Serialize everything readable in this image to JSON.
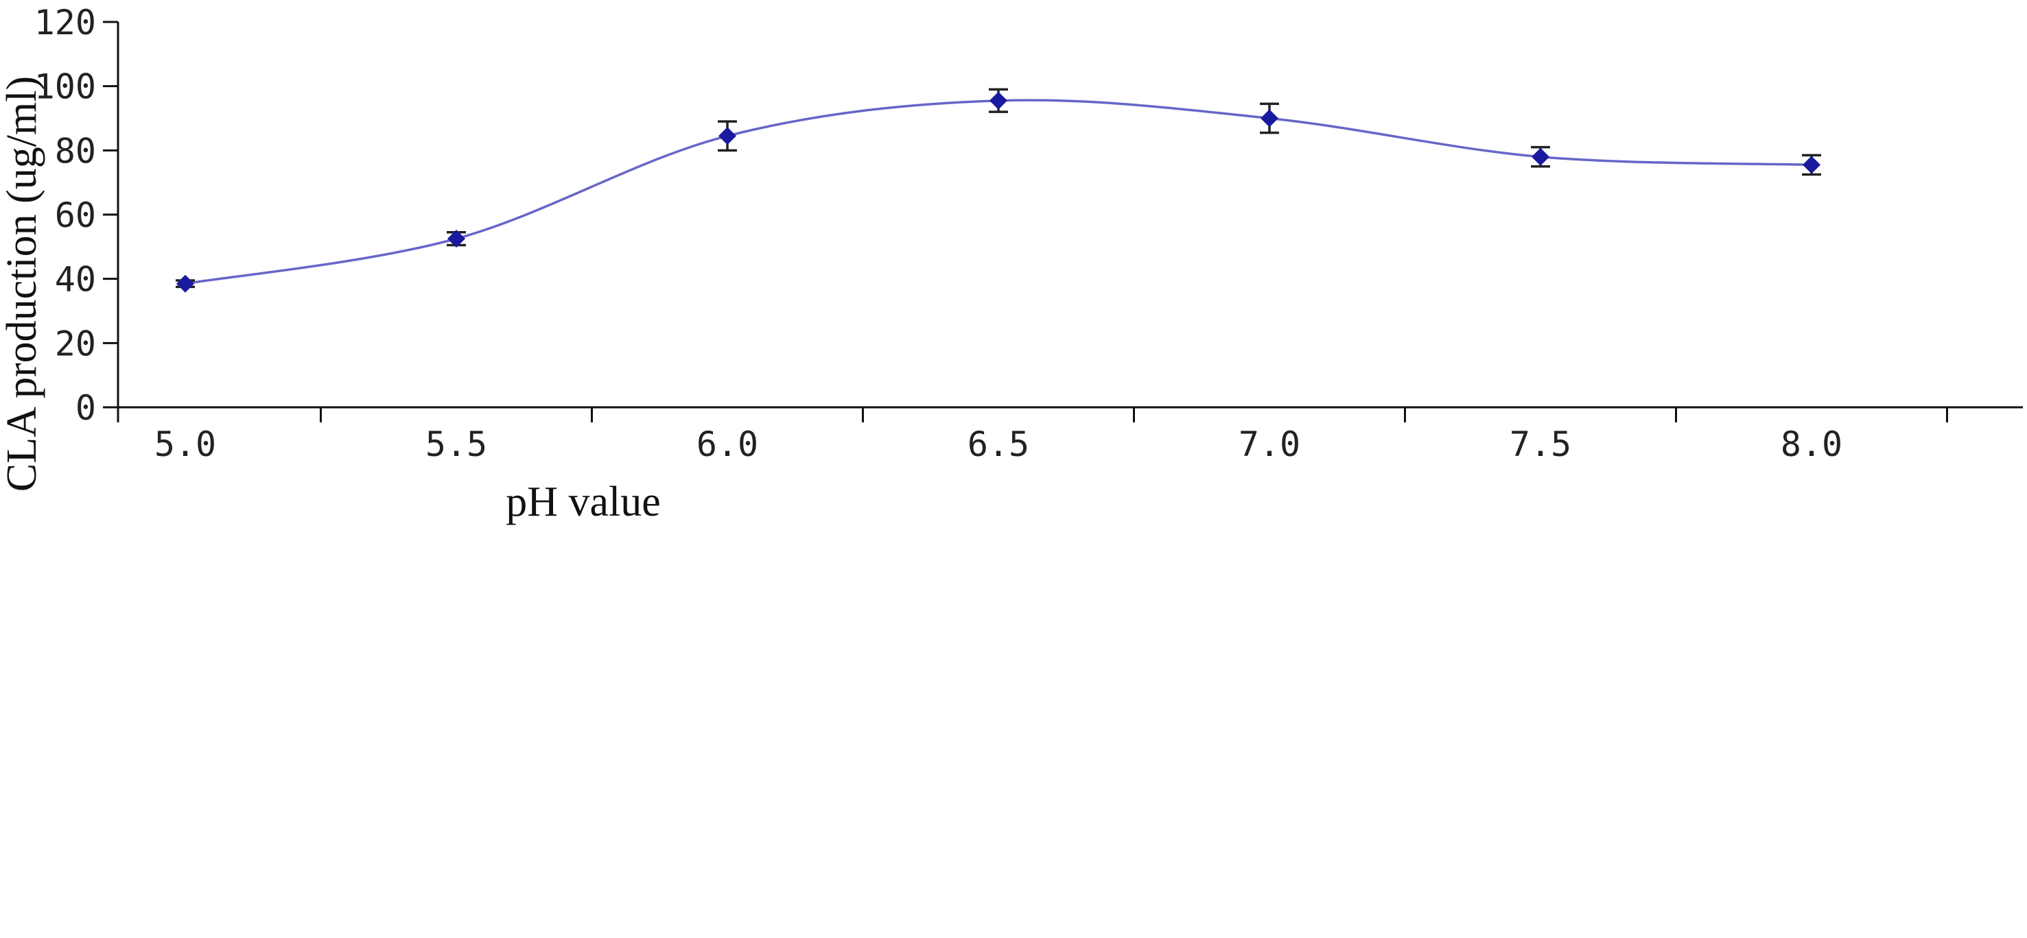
{
  "chart_data": {
    "type": "line",
    "title": "",
    "xlabel": "pH value",
    "ylabel": "CLA  production (ug/ml)",
    "categories": [
      "5.0",
      "5.5",
      "6.0",
      "6.5",
      "7.0",
      "7.5",
      "8.0"
    ],
    "y_ticks": [
      "0",
      "20",
      "40",
      "60",
      "80",
      "100",
      "120"
    ],
    "ylim": [
      0,
      120
    ],
    "grid": false,
    "legend": "none",
    "series": [
      {
        "values": [
          38.5,
          52.5,
          84.5,
          95.5,
          90,
          78,
          75.5
        ],
        "error": [
          1,
          2,
          4.5,
          3.5,
          4.5,
          3,
          3
        ],
        "color": "#1a1aa0",
        "line_color": "#6666c8",
        "marker": "diamond"
      }
    ]
  }
}
